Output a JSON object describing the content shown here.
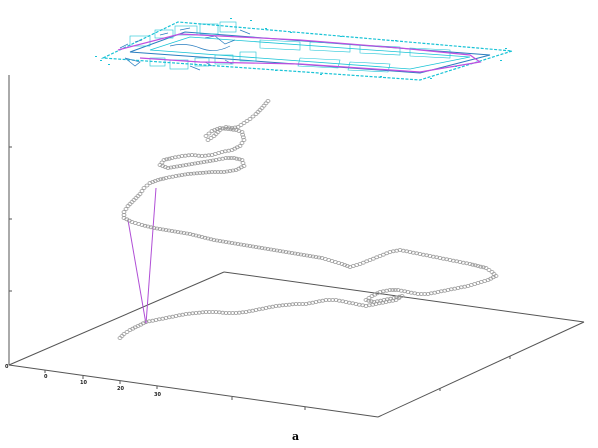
{
  "figure": {
    "caption": "a",
    "tick_labels": [
      "0",
      "0",
      "10",
      "20",
      "30"
    ]
  },
  "colors": {
    "background": "#ffffff",
    "axis": "#555555",
    "trajectory_marker": "#9a9a9a",
    "projection_lines": "#b04fd6",
    "floorplan_primary": "#19c3d6",
    "floorplan_secondary": "#2a7ec0",
    "floorplan_path": "#c04fe0"
  }
}
